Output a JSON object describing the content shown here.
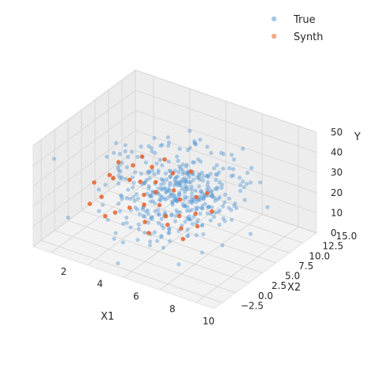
{
  "chart_data": {
    "type": "scatter",
    "projection": "3d",
    "title": "",
    "xlabel": "X1",
    "ylabel": "X2",
    "zlabel": "Y",
    "xlim": [
      1.0,
      11.0
    ],
    "ylim": [
      -4.0,
      15.0
    ],
    "zlim": [
      0,
      50
    ],
    "x_ticks": [
      "2",
      "4",
      "6",
      "8",
      "10"
    ],
    "y_ticks": [
      "−2.5",
      "0.0",
      "2.5",
      "5.0",
      "7.5",
      "10.0",
      "12.5",
      "15.0"
    ],
    "z_ticks": [
      "0",
      "10",
      "20",
      "30",
      "40",
      "50"
    ],
    "grid": true,
    "legend": {
      "position": "top-right"
    },
    "series": [
      {
        "name": "True",
        "color": "#5b9bd5",
        "alpha": 0.45,
        "n": 420,
        "x_mean": 6.3,
        "x_sd": 1.55,
        "x2_mean": 4.8,
        "x2_sd": 3.6,
        "y_mean": 26,
        "y_sd": 8
      },
      {
        "name": "Synth",
        "color": "#e8622a",
        "alpha": 0.85,
        "n": 140,
        "points": [
          [
            2.0,
            4.0,
            19
          ],
          [
            2.4,
            5.5,
            21
          ],
          [
            2.6,
            6.5,
            26
          ],
          [
            2.9,
            4.5,
            23
          ],
          [
            3.1,
            7.5,
            24
          ],
          [
            3.3,
            8.5,
            27
          ],
          [
            3.5,
            5.5,
            22
          ],
          [
            3.6,
            2.5,
            12
          ],
          [
            3.8,
            6.5,
            20
          ],
          [
            4.0,
            8.0,
            25
          ],
          [
            4.1,
            3.5,
            14
          ],
          [
            4.3,
            5.5,
            17
          ],
          [
            4.5,
            7.0,
            21
          ],
          [
            4.6,
            4.5,
            15
          ],
          [
            4.8,
            6.0,
            19
          ],
          [
            5.0,
            8.5,
            24
          ],
          [
            5.1,
            3.0,
            11
          ],
          [
            5.3,
            5.0,
            16
          ],
          [
            5.5,
            7.0,
            20
          ],
          [
            5.6,
            2.0,
            9
          ],
          [
            5.8,
            4.5,
            13
          ],
          [
            6.0,
            6.5,
            18
          ],
          [
            6.2,
            3.5,
            12
          ],
          [
            6.4,
            5.0,
            14
          ],
          [
            6.6,
            7.5,
            19
          ],
          [
            6.8,
            4.0,
            11
          ],
          [
            7.0,
            6.0,
            15
          ],
          [
            7.2,
            3.0,
            9
          ],
          [
            7.4,
            5.0,
            12
          ],
          [
            7.6,
            7.0,
            16
          ],
          [
            2.2,
            2.5,
            12
          ],
          [
            2.7,
            3.0,
            16
          ],
          [
            3.2,
            2.0,
            10
          ],
          [
            4.4,
            9.0,
            28
          ],
          [
            5.7,
            9.5,
            25
          ],
          [
            6.9,
            8.5,
            20
          ]
        ]
      }
    ]
  }
}
